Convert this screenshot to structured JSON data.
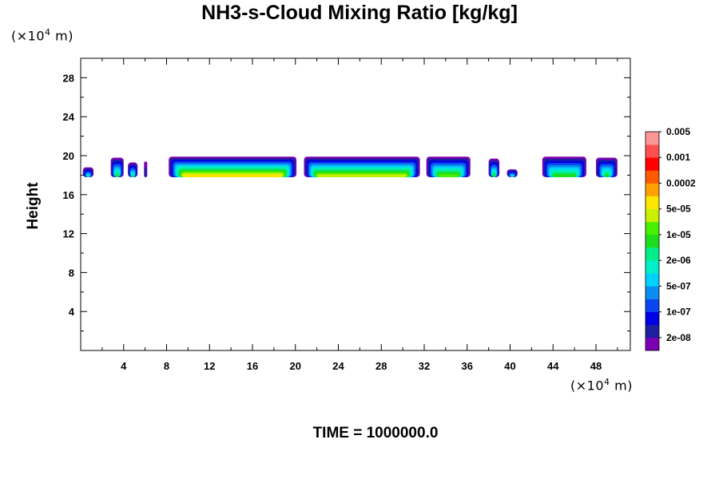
{
  "chart_data": {
    "type": "heatmap",
    "title": "NH3-s-Cloud Mixing Ratio [kg/kg]",
    "xlabel": "",
    "ylabel": "Height",
    "x_unit": {
      "prefix": "(×10",
      "exp": "4",
      "suffix": " m)"
    },
    "y_unit": {
      "prefix": "(×10",
      "exp": "4",
      "suffix": " m)"
    },
    "xlim": [
      0,
      51.2
    ],
    "ylim": [
      0,
      30
    ],
    "x_ticks": [
      "4",
      "8",
      "12",
      "16",
      "20",
      "24",
      "28",
      "32",
      "36",
      "40",
      "44",
      "48"
    ],
    "y_ticks": [
      "4",
      "8",
      "12",
      "16",
      "20",
      "24",
      "28"
    ],
    "x_tick_values": [
      4,
      8,
      12,
      16,
      20,
      24,
      28,
      32,
      36,
      40,
      44,
      48
    ],
    "y_tick_values": [
      4,
      8,
      12,
      16,
      20,
      24,
      28
    ],
    "colorbar": {
      "colors": [
        "#7b00b4",
        "#1e1ea0",
        "#0000e6",
        "#0a46f0",
        "#0a8cf0",
        "#00d2ff",
        "#00f0c8",
        "#00ee8c",
        "#1edc1e",
        "#46f000",
        "#c8f000",
        "#ffe600",
        "#ffa000",
        "#ff5a00",
        "#ff0000",
        "#ff5050",
        "#ff9696"
      ],
      "labels": [
        "2e-08",
        "1e-07",
        "5e-07",
        "2e-06",
        "1e-05",
        "5e-05",
        "0.0002",
        "0.001",
        "0.005"
      ]
    },
    "cloud_layer": {
      "base_height": 17.8,
      "top_height_approx": 19.8,
      "segments": [
        {
          "x": [
            0.2,
            1.2
          ],
          "top": 18.8,
          "level": 6
        },
        {
          "x": [
            2.8,
            4.0
          ],
          "top": 19.8,
          "level": 8
        },
        {
          "x": [
            4.4,
            5.3
          ],
          "top": 19.3,
          "level": 7
        },
        {
          "x": [
            5.9,
            6.2
          ],
          "top": 19.4,
          "level": 1
        },
        {
          "x": [
            8.2,
            20.1
          ],
          "top": 19.9,
          "level": 11
        },
        {
          "x": [
            20.8,
            31.6
          ],
          "top": 19.9,
          "level": 10
        },
        {
          "x": [
            32.2,
            36.3
          ],
          "top": 19.9,
          "level": 9
        },
        {
          "x": [
            38.0,
            39.0
          ],
          "top": 19.7,
          "level": 8
        },
        {
          "x": [
            39.7,
            40.7
          ],
          "top": 18.6,
          "level": 6
        },
        {
          "x": [
            43.0,
            47.1
          ],
          "top": 19.9,
          "level": 8
        },
        {
          "x": [
            48.0,
            50.0
          ],
          "top": 19.8,
          "level": 8
        }
      ]
    }
  },
  "footer": {
    "time_label": "TIME = 1000000.0"
  }
}
